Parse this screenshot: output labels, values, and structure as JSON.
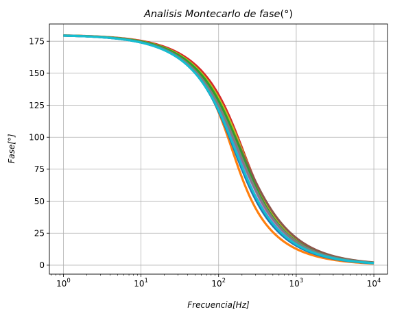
{
  "chart_data": {
    "type": "line",
    "title_main": "Analisis Montecarlo de fase",
    "title_unit": "(°)",
    "xlabel_main": "Frecuencia",
    "xlabel_unit": "[Hz]",
    "ylabel_main": "Fase",
    "ylabel_unit": "[°]",
    "xscale": "log",
    "xlim": [
      0.66,
      15000
    ],
    "ylim": [
      -7,
      188.5
    ],
    "grid": true,
    "x_ticks": [
      {
        "value": 1,
        "base": "10",
        "exp": "0"
      },
      {
        "value": 10,
        "base": "10",
        "exp": "1"
      },
      {
        "value": 100,
        "base": "10",
        "exp": "2"
      },
      {
        "value": 1000,
        "base": "10",
        "exp": "3"
      },
      {
        "value": 10000,
        "base": "10",
        "exp": "4"
      }
    ],
    "y_ticks": [
      {
        "value": 0,
        "label": "0"
      },
      {
        "value": 25,
        "label": "25"
      },
      {
        "value": 50,
        "label": "50"
      },
      {
        "value": 75,
        "label": "75"
      },
      {
        "value": 100,
        "label": "100"
      },
      {
        "value": 125,
        "label": "125"
      },
      {
        "value": 150,
        "label": "150"
      },
      {
        "value": 175,
        "label": "175"
      }
    ],
    "x_range": [
      1,
      10000
    ],
    "series": [
      {
        "color": "#e377c2",
        "fc_hz": 185,
        "q": 0.62
      },
      {
        "color": "#d62728",
        "fc_hz": 205,
        "q": 0.6
      },
      {
        "color": "#bcbd22",
        "fc_hz": 200,
        "q": 0.57
      },
      {
        "color": "#ff7f0e",
        "fc_hz": 150,
        "q": 0.68
      },
      {
        "color": "#8c564b",
        "fc_hz": 195,
        "q": 0.52
      },
      {
        "color": "#9467bd",
        "fc_hz": 175,
        "q": 0.55
      },
      {
        "color": "#2ca02c",
        "fc_hz": 190,
        "q": 0.58
      },
      {
        "color": "#7f7f7f",
        "fc_hz": 180,
        "q": 0.56
      },
      {
        "color": "#1f77b4",
        "fc_hz": 160,
        "q": 0.6
      },
      {
        "color": "#17becf",
        "fc_hz": 165,
        "q": 0.58
      }
    ]
  }
}
